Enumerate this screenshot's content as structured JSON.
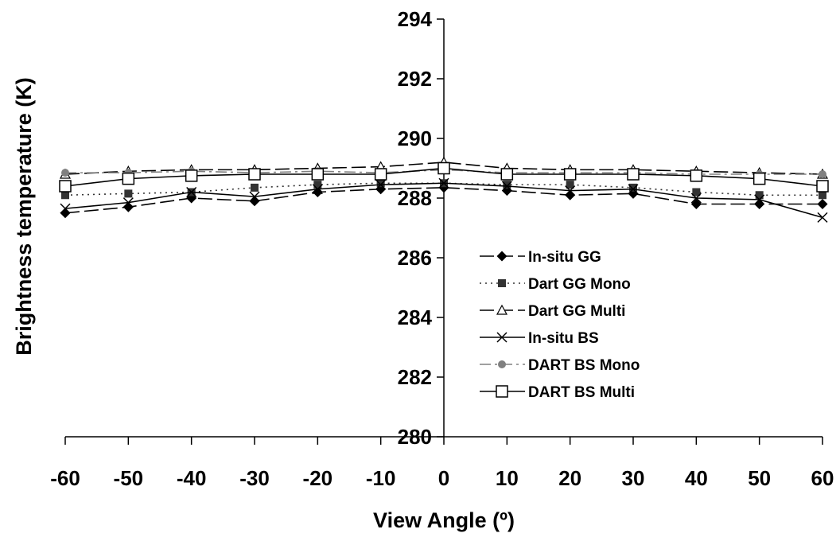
{
  "chart_data": {
    "type": "line",
    "title": "",
    "xlabel": "View Angle (º)",
    "ylabel": "Brightness temperature (K)",
    "xlim": [
      -60,
      60
    ],
    "ylim": [
      280,
      294
    ],
    "x_ticks": [
      -60,
      -50,
      -40,
      -30,
      -20,
      -10,
      0,
      10,
      20,
      30,
      40,
      50,
      60
    ],
    "y_ticks": [
      280,
      282,
      284,
      286,
      288,
      290,
      292,
      294
    ],
    "grid": false,
    "legend_position": "center-right",
    "x": [
      -60,
      -50,
      -40,
      -30,
      -20,
      -10,
      0,
      10,
      20,
      30,
      40,
      50,
      60
    ],
    "series": [
      {
        "name": "In-situ GG",
        "marker": "diamond",
        "line": "long-dash",
        "color": "#000000",
        "values": [
          287.5,
          287.7,
          288.0,
          287.9,
          288.2,
          288.3,
          288.35,
          288.25,
          288.1,
          288.15,
          287.8,
          287.8,
          287.8
        ]
      },
      {
        "name": "Dart GG Mono",
        "marker": "square",
        "line": "dotted",
        "color": "#333333",
        "values": [
          288.1,
          288.15,
          288.2,
          288.35,
          288.45,
          288.5,
          288.5,
          288.45,
          288.45,
          288.35,
          288.2,
          288.1,
          288.1
        ]
      },
      {
        "name": "Dart GG Multi",
        "marker": "triangle",
        "line": "long-dash",
        "color": "#000000",
        "values": [
          288.8,
          288.9,
          288.95,
          288.95,
          289.0,
          289.05,
          289.2,
          289.0,
          288.95,
          288.95,
          288.9,
          288.85,
          288.8
        ]
      },
      {
        "name": "In-situ BS",
        "marker": "x",
        "line": "solid",
        "color": "#000000",
        "values": [
          287.65,
          287.85,
          288.2,
          288.05,
          288.3,
          288.45,
          288.5,
          288.4,
          288.25,
          288.3,
          288.0,
          287.95,
          287.35
        ]
      },
      {
        "name": "DART BS Mono",
        "marker": "circle",
        "line": "dash-dot",
        "color": "#808080",
        "values": [
          288.85,
          288.85,
          288.9,
          288.85,
          288.9,
          288.85,
          288.95,
          288.85,
          288.85,
          288.85,
          288.8,
          288.8,
          288.8
        ]
      },
      {
        "name": "DART BS Multi",
        "marker": "open-square",
        "line": "solid",
        "color": "#000000",
        "values": [
          288.4,
          288.65,
          288.75,
          288.8,
          288.8,
          288.8,
          289.0,
          288.8,
          288.8,
          288.8,
          288.75,
          288.65,
          288.4
        ]
      }
    ]
  }
}
